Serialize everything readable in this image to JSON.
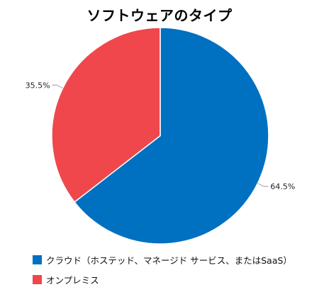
{
  "chart_data": {
    "type": "pie",
    "title": "ソフトウェアのタイプ",
    "slices": [
      {
        "label": "クラウド（ホステッド、マネージド サービス、またはSaaS）",
        "value": 64.5,
        "value_label": "64.5%",
        "color": "#0070c0"
      },
      {
        "label": "オンプレミス",
        "value": 35.5,
        "value_label": "35.5%",
        "color": "#ef474b"
      }
    ],
    "start_angle": "12 o'clock",
    "direction": "clockwise",
    "legend_position": "bottom-left"
  }
}
